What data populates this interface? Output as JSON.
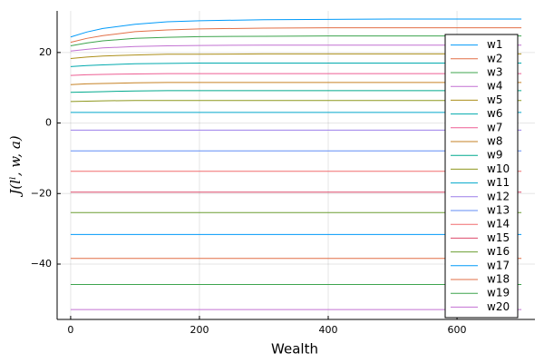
{
  "chart_data": {
    "type": "line",
    "xlabel": "Wealth",
    "ylabel": "J(lˡ, w, a)",
    "x": [
      0,
      25,
      50,
      100,
      150,
      200,
      300,
      400,
      500,
      600,
      700
    ],
    "xlim": [
      -21,
      721
    ],
    "ylim": [
      -55.7,
      31.8
    ],
    "xticks": [
      0,
      200,
      400,
      600
    ],
    "yticks": [
      {
        "value": -40,
        "label": "−40"
      },
      {
        "value": -20,
        "label": "−20"
      },
      0,
      20
    ],
    "grid": true,
    "legend": "top-right",
    "series": [
      {
        "name": "w1",
        "color": "#009af9",
        "values": [
          24.4,
          25.8,
          26.8,
          28.0,
          28.7,
          29.0,
          29.3,
          29.4,
          29.5,
          29.5,
          29.5
        ]
      },
      {
        "name": "w2",
        "color": "#e26f46",
        "values": [
          22.9,
          24.0,
          24.8,
          25.9,
          26.4,
          26.7,
          26.9,
          27.0,
          27.0,
          27.0,
          27.0
        ]
      },
      {
        "name": "w3",
        "color": "#3da44d",
        "values": [
          21.9,
          22.7,
          23.3,
          24.0,
          24.3,
          24.5,
          24.6,
          24.7,
          24.7,
          24.7,
          24.7
        ]
      },
      {
        "name": "w4",
        "color": "#c271d2",
        "values": [
          20.4,
          20.9,
          21.3,
          21.7,
          21.9,
          22.0,
          22.1,
          22.1,
          22.1,
          22.1,
          22.1
        ]
      },
      {
        "name": "w5",
        "color": "#ac8e18",
        "values": [
          18.3,
          18.7,
          19.0,
          19.3,
          19.5,
          19.5,
          19.6,
          19.6,
          19.6,
          19.6,
          19.6
        ]
      },
      {
        "name": "w6",
        "color": "#00a9ad",
        "values": [
          16.0,
          16.3,
          16.5,
          16.8,
          16.9,
          17.0,
          17.0,
          17.0,
          17.0,
          17.0,
          17.0
        ]
      },
      {
        "name": "w7",
        "color": "#ed5e93",
        "values": [
          13.5,
          13.7,
          13.8,
          13.9,
          14.0,
          14.0,
          14.0,
          14.0,
          14.0,
          14.0,
          14.0
        ]
      },
      {
        "name": "w8",
        "color": "#c68225",
        "values": [
          10.9,
          11.1,
          11.2,
          11.4,
          11.5,
          11.5,
          11.5,
          11.5,
          11.5,
          11.5,
          11.5
        ]
      },
      {
        "name": "w9",
        "color": "#00a98d",
        "values": [
          8.7,
          8.8,
          8.9,
          9.1,
          9.2,
          9.2,
          9.2,
          9.2,
          9.2,
          9.2,
          9.2
        ]
      },
      {
        "name": "w10",
        "color": "#8e971e",
        "values": [
          6.1,
          6.2,
          6.3,
          6.4,
          6.4,
          6.4,
          6.4,
          6.4,
          6.4,
          6.4,
          6.4
        ]
      },
      {
        "name": "w11",
        "color": "#00a8cb",
        "values": [
          3.0,
          3.0,
          3.0,
          3.0,
          3.0,
          3.0,
          3.0,
          3.0,
          3.0,
          3.0,
          3.0
        ]
      },
      {
        "name": "w12",
        "color": "#9b7fe9",
        "values": [
          -2.0,
          -2.0,
          -2.0,
          -2.0,
          -2.0,
          -2.0,
          -2.0,
          -2.0,
          -2.0,
          -2.0,
          -2.0
        ]
      },
      {
        "name": "w13",
        "color": "#618df6",
        "values": [
          -7.9,
          -7.9,
          -7.9,
          -7.9,
          -7.9,
          -7.9,
          -7.9,
          -7.9,
          -7.9,
          -7.9,
          -7.9
        ]
      },
      {
        "name": "w14",
        "color": "#f16c6f",
        "values": [
          -13.7,
          -13.7,
          -13.7,
          -13.7,
          -13.7,
          -13.7,
          -13.7,
          -13.7,
          -13.7,
          -13.7,
          -13.7
        ]
      },
      {
        "name": "w15",
        "color": "#dd4a6b",
        "values": [
          -19.6,
          -19.6,
          -19.6,
          -19.6,
          -19.6,
          -19.6,
          -19.6,
          -19.6,
          -19.6,
          -19.6,
          -19.6
        ]
      },
      {
        "name": "w16",
        "color": "#6b9e32",
        "values": [
          -25.4,
          -25.4,
          -25.4,
          -25.4,
          -25.4,
          -25.4,
          -25.4,
          -25.4,
          -25.4,
          -25.4,
          -25.4
        ]
      },
      {
        "name": "w17",
        "color": "#009af9",
        "values": [
          -31.6,
          -31.6,
          -31.6,
          -31.6,
          -31.6,
          -31.6,
          -31.6,
          -31.6,
          -31.6,
          -31.6,
          -31.6
        ]
      },
      {
        "name": "w18",
        "color": "#e26f46",
        "values": [
          -38.4,
          -38.4,
          -38.4,
          -38.4,
          -38.4,
          -38.4,
          -38.4,
          -38.4,
          -38.4,
          -38.4,
          -38.4
        ]
      },
      {
        "name": "w19",
        "color": "#3da44d",
        "values": [
          -45.8,
          -45.8,
          -45.8,
          -45.8,
          -45.8,
          -45.8,
          -45.8,
          -45.8,
          -45.8,
          -45.8,
          -45.8
        ]
      },
      {
        "name": "w20",
        "color": "#c271d2",
        "values": [
          -52.9,
          -52.9,
          -52.9,
          -52.9,
          -52.9,
          -52.9,
          -52.9,
          -52.9,
          -52.9,
          -52.9,
          -52.9
        ]
      }
    ]
  }
}
